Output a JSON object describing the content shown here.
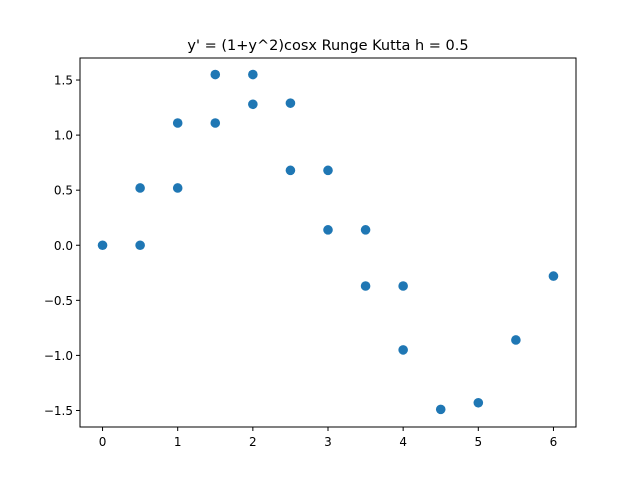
{
  "chart_data": {
    "type": "scatter",
    "title": "y' = (1+y^2)cosx Runge Kutta h = 0.5",
    "xlabel": "",
    "ylabel": "",
    "xlim": [
      -0.3,
      6.3
    ],
    "ylim": [
      -1.65,
      1.7
    ],
    "x_ticks": [
      0,
      1,
      2,
      3,
      4,
      5,
      6
    ],
    "x_tick_labels": [
      "0",
      "1",
      "2",
      "3",
      "4",
      "5",
      "6"
    ],
    "y_ticks": [
      -1.5,
      -1.0,
      -0.5,
      0.0,
      0.5,
      1.0,
      1.5
    ],
    "y_tick_labels": [
      "−1.5",
      "−1.0",
      "−0.5",
      "0.0",
      "0.5",
      "1.0",
      "1.5"
    ],
    "grid": false,
    "marker_color": "#1f77b4",
    "series": [
      {
        "x": [
          0,
          0.5,
          0.5,
          1,
          1,
          1.5,
          1.5,
          2,
          2,
          2.5,
          2.5,
          3,
          3,
          3.5,
          3.5,
          4,
          4,
          4.5,
          5,
          5.5,
          6
        ],
        "y": [
          0.0,
          0.0,
          0.52,
          0.52,
          1.11,
          1.11,
          1.55,
          1.55,
          1.28,
          1.29,
          0.68,
          0.68,
          0.14,
          0.14,
          -0.37,
          -0.37,
          -0.95,
          -1.49,
          -1.43,
          -0.86,
          -0.28
        ]
      }
    ]
  }
}
